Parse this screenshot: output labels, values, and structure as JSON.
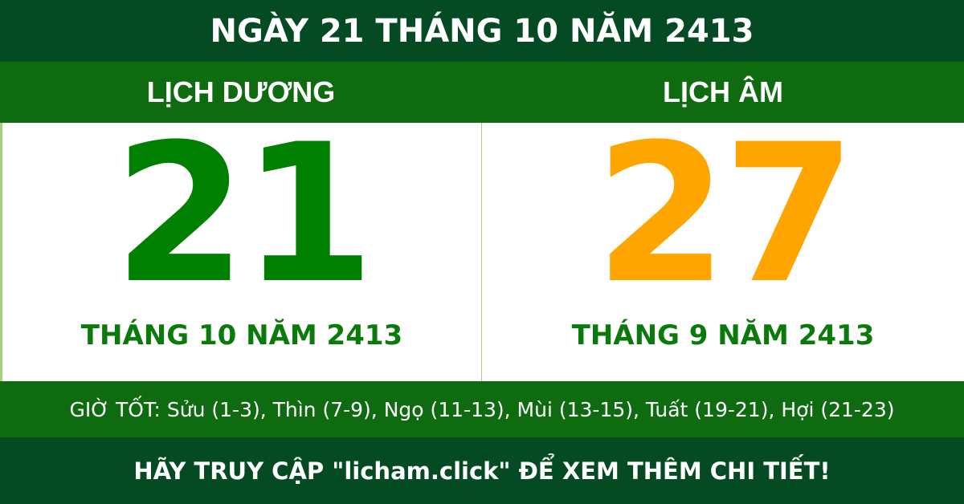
{
  "title": "NGÀY 21 THÁNG 10 NĂM 2413",
  "solar": {
    "heading": "LỊCH DƯƠNG",
    "day": "21",
    "month_year": "THÁNG 10 NĂM 2413"
  },
  "lunar": {
    "heading": "LỊCH ÂM",
    "day": "27",
    "month_year": "THÁNG 9 NĂM 2413"
  },
  "good_hours": "GIỜ TỐT: Sửu (1-3), Thìn (7-9), Ngọ (11-13), Mùi (13-15), Tuất (19-21), Hợi (21-23)",
  "footer": "HÃY TRUY CẬP \"licham.click\" ĐỂ XEM THÊM CHI TIẾT!",
  "colors": {
    "dark_green": "#044a22",
    "green": "#0f6b10",
    "solar_day": "#008000",
    "lunar_day": "#ffa500"
  }
}
